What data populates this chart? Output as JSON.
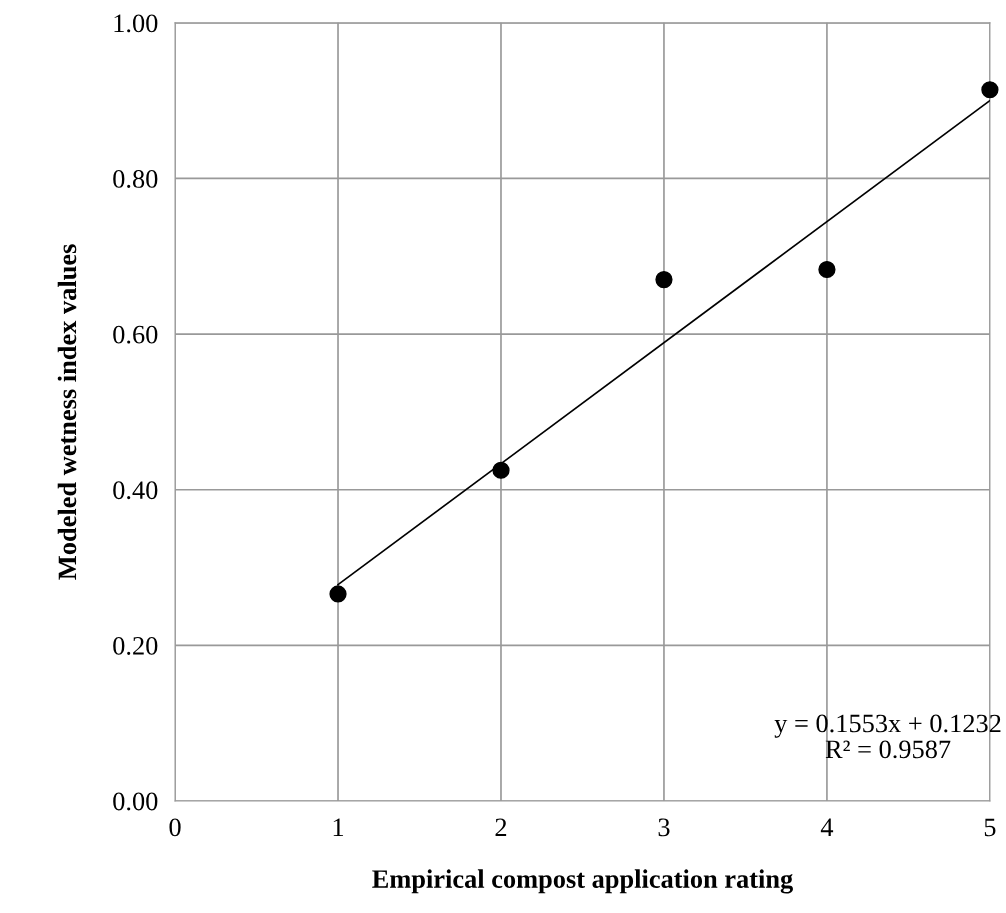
{
  "chart_data": {
    "type": "scatter",
    "xlabel": "Empirical compost application rating",
    "ylabel": "Modeled wetness index values",
    "series": [
      {
        "color": "#000000",
        "x": [
          1,
          2,
          3,
          4,
          5
        ],
        "values": [
          0.266,
          0.425,
          0.67,
          0.683,
          0.914
        ],
        "marker": "circle"
      },
      {
        "type": "line",
        "color": "#000000",
        "x": [
          1,
          5
        ],
        "values": [
          0.278,
          0.9
        ],
        "marker": "none",
        "line_style": "solid"
      }
    ],
    "xlim": [
      0,
      5
    ],
    "xticks": [
      0,
      1,
      2,
      3,
      4,
      5
    ],
    "ylim": [
      0,
      1
    ],
    "yticks": [
      {
        "value": 0,
        "label": "0.00"
      },
      {
        "value": 0.2,
        "label": "0.20"
      },
      {
        "value": 0.4,
        "label": "0.40"
      },
      {
        "value": 0.6,
        "label": "0.60"
      },
      {
        "value": 0.8,
        "label": "0.80"
      },
      {
        "value": 1,
        "label": "1.00"
      }
    ],
    "grid": true,
    "annotations": [
      "y = 0.1553x + 0.1232\nR² = 0.9587"
    ]
  }
}
